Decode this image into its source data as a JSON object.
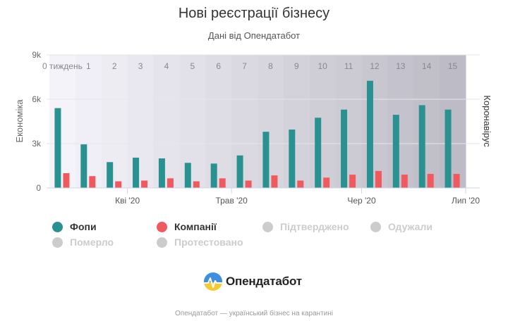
{
  "title": "Нові реєстрації бізнесу",
  "subtitle": "Дані від Опендатабот",
  "footer": "Опендатабот — український бізнес на карантині",
  "brand": {
    "name": "Опендатабот",
    "logo_icon": "opendatabot-logo-icon"
  },
  "chart_data": {
    "type": "bar",
    "categories": [
      "0 тиждень",
      "1",
      "2",
      "3",
      "4",
      "5",
      "6",
      "7",
      "8",
      "9",
      "10",
      "11",
      "12",
      "13",
      "14",
      "15"
    ],
    "series": [
      {
        "name": "Фопи",
        "color": "#2a9191",
        "values": [
          5400,
          2950,
          1750,
          2050,
          2000,
          1700,
          1650,
          2200,
          3800,
          3950,
          4750,
          5300,
          7250,
          4950,
          5600,
          5300
        ]
      },
      {
        "name": "Компанії",
        "color": "#f05a5f",
        "values": [
          1000,
          800,
          450,
          500,
          650,
          450,
          650,
          500,
          850,
          500,
          700,
          900,
          1150,
          900,
          950,
          950
        ]
      }
    ],
    "ylim": [
      0,
      9000
    ],
    "yticks": [
      0,
      3000,
      6000,
      9000
    ],
    "ytick_labels": [
      "0",
      "3k",
      "6k",
      "9k"
    ],
    "ylabel": "Економіка",
    "ylabel_right": "Коронавірус",
    "x_date_labels": [
      {
        "label": "Кві '20",
        "after_index": 2
      },
      {
        "label": "Трав '20",
        "after_index": 6
      },
      {
        "label": "Чер '20",
        "after_index": 11
      },
      {
        "label": "Лип '20",
        "after_index": 15
      }
    ],
    "background_shading": "weekly bands darkening left to right",
    "grid": true
  },
  "legend": [
    {
      "label": "Фопи",
      "color": "#2a9191",
      "active": true
    },
    {
      "label": "Компанії",
      "color": "#f05a5f",
      "active": true
    },
    {
      "label": "Підтверджено",
      "color": "#cccccc",
      "active": false
    },
    {
      "label": "Одужали",
      "color": "#cccccc",
      "active": false
    },
    {
      "label": "Померло",
      "color": "#cccccc",
      "active": false
    },
    {
      "label": "Протестовано",
      "color": "#cccccc",
      "active": false
    }
  ]
}
